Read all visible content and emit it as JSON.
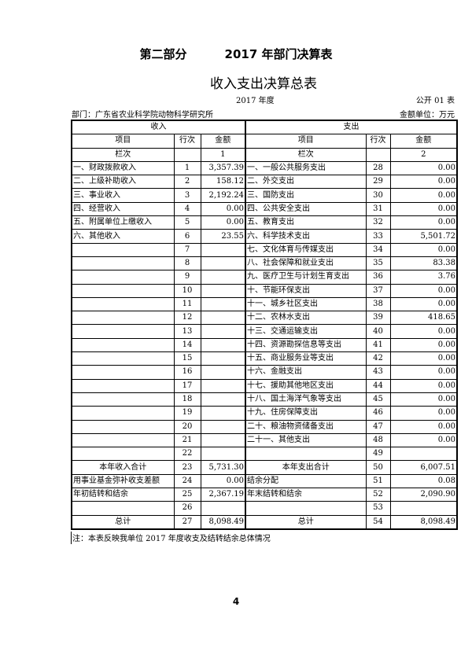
{
  "header": {
    "part": "第二部分",
    "title": "2017 年部门决算表"
  },
  "table_title": "收入支出决算总表",
  "year": "2017 年度",
  "code": "公开 01 表",
  "department": "部门：广东省农业科学院动物科学研究所",
  "unit": "金额单位：万元",
  "columns": {
    "income": "收入",
    "expense": "支出",
    "item": "项目",
    "line": "行次",
    "amount": "金额",
    "col_label": "栏次",
    "col1": "1",
    "col2": "2"
  },
  "rows": [
    {
      "li": "一、财政拨款收入",
      "ln": "1",
      "la": "3,357.39",
      "ri": "一、一般公共服务支出",
      "rn": "28",
      "ra": "0.00"
    },
    {
      "li": "二、上级补助收入",
      "ln": "2",
      "la": "158.12",
      "ri": "二、外交支出",
      "rn": "29",
      "ra": "0.00"
    },
    {
      "li": "三、事业收入",
      "ln": "3",
      "la": "2,192.24",
      "ri": "三、国防支出",
      "rn": "30",
      "ra": "0.00"
    },
    {
      "li": "四、经营收入",
      "ln": "4",
      "la": "0.00",
      "ri": "四、公共安全支出",
      "rn": "31",
      "ra": "0.00"
    },
    {
      "li": "五、附属单位上缴收入",
      "ln": "5",
      "la": "0.00",
      "ri": "五、教育支出",
      "rn": "32",
      "ra": "0.00"
    },
    {
      "li": "六、其他收入",
      "ln": "6",
      "la": "23.55",
      "ri": "六、科学技术支出",
      "rn": "33",
      "ra": "5,501.72"
    },
    {
      "li": "",
      "ln": "7",
      "la": "",
      "ri": "七、文化体育与传媒支出",
      "rn": "34",
      "ra": "0.00"
    },
    {
      "li": "",
      "ln": "8",
      "la": "",
      "ri": "八、社会保障和就业支出",
      "rn": "35",
      "ra": "83.38"
    },
    {
      "li": "",
      "ln": "9",
      "la": "",
      "ri": "九、医疗卫生与计划生育支出",
      "rn": "36",
      "ra": "3.76"
    },
    {
      "li": "",
      "ln": "10",
      "la": "",
      "ri": "十、节能环保支出",
      "rn": "37",
      "ra": "0.00"
    },
    {
      "li": "",
      "ln": "11",
      "la": "",
      "ri": "十一、城乡社区支出",
      "rn": "38",
      "ra": "0.00"
    },
    {
      "li": "",
      "ln": "12",
      "la": "",
      "ri": "十二、农林水支出",
      "rn": "39",
      "ra": "418.65"
    },
    {
      "li": "",
      "ln": "13",
      "la": "",
      "ri": "十三、交通运输支出",
      "rn": "40",
      "ra": "0.00"
    },
    {
      "li": "",
      "ln": "14",
      "la": "",
      "ri": "十四、资源勘探信息等支出",
      "rn": "41",
      "ra": "0.00"
    },
    {
      "li": "",
      "ln": "15",
      "la": "",
      "ri": "十五、商业服务业等支出",
      "rn": "42",
      "ra": "0.00"
    },
    {
      "li": "",
      "ln": "16",
      "la": "",
      "ri": "十六、金融支出",
      "rn": "43",
      "ra": "0.00"
    },
    {
      "li": "",
      "ln": "17",
      "la": "",
      "ri": "十七、援助其他地区支出",
      "rn": "44",
      "ra": "0.00"
    },
    {
      "li": "",
      "ln": "18",
      "la": "",
      "ri": "十八、国土海洋气象等支出",
      "rn": "45",
      "ra": "0.00"
    },
    {
      "li": "",
      "ln": "19",
      "la": "",
      "ri": "十九、住房保障支出",
      "rn": "46",
      "ra": "0.00"
    },
    {
      "li": "",
      "ln": "20",
      "la": "",
      "ri": "二十、粮油物资储备支出",
      "rn": "47",
      "ra": "0.00"
    },
    {
      "li": "",
      "ln": "21",
      "la": "",
      "ri": "二十一、其他支出",
      "rn": "48",
      "ra": "0.00"
    },
    {
      "li": "",
      "ln": "22",
      "la": "",
      "ri": "",
      "rn": "49",
      "ra": ""
    },
    {
      "li": "本年收入合计",
      "ln": "23",
      "la": "5,731.30",
      "ri": "本年支出合计",
      "rn": "50",
      "ra": "6,007.51",
      "center": true
    },
    {
      "li": "用事业基金弥补收支差额",
      "ln": "24",
      "la": "0.00",
      "ri": "结余分配",
      "rn": "51",
      "ra": "0.08"
    },
    {
      "li": "年初结转和结余",
      "ln": "25",
      "la": "2,367.19",
      "ri": "年末结转和结余",
      "rn": "52",
      "ra": "2,090.90"
    },
    {
      "li": "",
      "ln": "26",
      "la": "",
      "ri": "",
      "rn": "53",
      "ra": ""
    },
    {
      "li": "总计",
      "ln": "27",
      "la": "8,098.49",
      "ri": "总计",
      "rn": "54",
      "ra": "8,098.49",
      "center": true
    }
  ],
  "note": "注：本表反映我单位 2017 年度收支及结转结余总体情况",
  "page_number": "4"
}
